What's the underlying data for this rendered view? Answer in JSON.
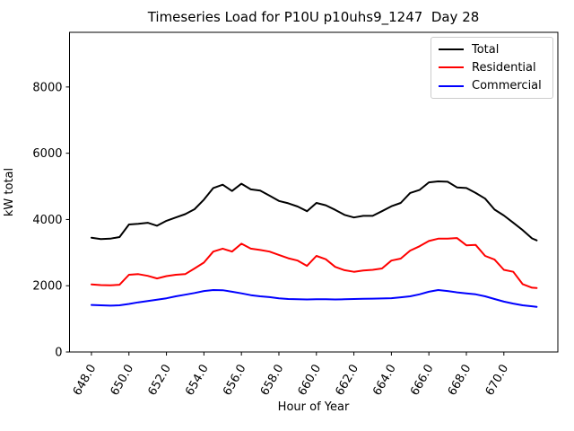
{
  "chart_data": {
    "type": "line",
    "title": "Timeseries Load for P10U p10uhs9_1247  Day 28",
    "xlabel": "Hour of Year",
    "ylabel": "kW total",
    "xlim": [
      646.83,
      672.88
    ],
    "ylim": [
      0,
      9650
    ],
    "xticks": [
      648,
      650,
      652,
      654,
      656,
      658,
      660,
      662,
      664,
      666,
      668,
      670
    ],
    "xtick_labels": [
      "648.0",
      "650.0",
      "652.0",
      "654.0",
      "656.0",
      "658.0",
      "660.0",
      "662.0",
      "664.0",
      "666.0",
      "668.0",
      "670.0"
    ],
    "yticks": [
      0,
      2000,
      4000,
      6000,
      8000
    ],
    "ytick_labels": [
      "0",
      "2000",
      "4000",
      "6000",
      "8000"
    ],
    "xtick_rotation_deg": 60,
    "grid": false,
    "legend_position": "upper right",
    "x": [
      648,
      648.5,
      649,
      649.5,
      650,
      650.5,
      651,
      651.5,
      652,
      652.5,
      653,
      653.5,
      654,
      654.5,
      655,
      655.5,
      656,
      656.5,
      657,
      657.5,
      658,
      658.5,
      659,
      659.5,
      660,
      660.5,
      661,
      661.5,
      662,
      662.5,
      663,
      663.5,
      664,
      664.5,
      665,
      665.5,
      666,
      666.5,
      667,
      667.5,
      668,
      668.5,
      669,
      669.5,
      670,
      670.5,
      671,
      671.5,
      671.75
    ],
    "series": [
      {
        "name": "Total",
        "color": "#000000",
        "values": [
          3450,
          3410,
          3420,
          3470,
          3850,
          3870,
          3900,
          3810,
          3960,
          4060,
          4160,
          4310,
          4600,
          4950,
          5050,
          4860,
          5080,
          4910,
          4870,
          4720,
          4560,
          4490,
          4390,
          4250,
          4500,
          4430,
          4290,
          4140,
          4060,
          4110,
          4110,
          4250,
          4400,
          4500,
          4800,
          4890,
          5120,
          5150,
          5140,
          4970,
          4950,
          4800,
          4630,
          4300,
          4120,
          3900,
          3680,
          3430,
          3370
        ]
      },
      {
        "name": "Residential",
        "color": "#ff0000",
        "values": [
          2040,
          2020,
          2010,
          2030,
          2330,
          2350,
          2300,
          2220,
          2290,
          2330,
          2350,
          2520,
          2700,
          3030,
          3120,
          3030,
          3270,
          3120,
          3080,
          3030,
          2930,
          2830,
          2760,
          2600,
          2900,
          2800,
          2570,
          2470,
          2420,
          2460,
          2480,
          2520,
          2760,
          2820,
          3060,
          3190,
          3350,
          3420,
          3420,
          3440,
          3220,
          3230,
          2900,
          2790,
          2480,
          2420,
          2050,
          1940,
          1930
        ]
      },
      {
        "name": "Commercial",
        "color": "#0000ff",
        "values": [
          1420,
          1410,
          1400,
          1410,
          1450,
          1500,
          1540,
          1580,
          1620,
          1680,
          1730,
          1780,
          1840,
          1870,
          1865,
          1820,
          1770,
          1715,
          1680,
          1655,
          1620,
          1600,
          1590,
          1585,
          1590,
          1590,
          1585,
          1590,
          1600,
          1605,
          1610,
          1615,
          1625,
          1650,
          1680,
          1740,
          1820,
          1870,
          1840,
          1800,
          1770,
          1740,
          1680,
          1600,
          1520,
          1460,
          1410,
          1380,
          1360
        ]
      }
    ]
  }
}
